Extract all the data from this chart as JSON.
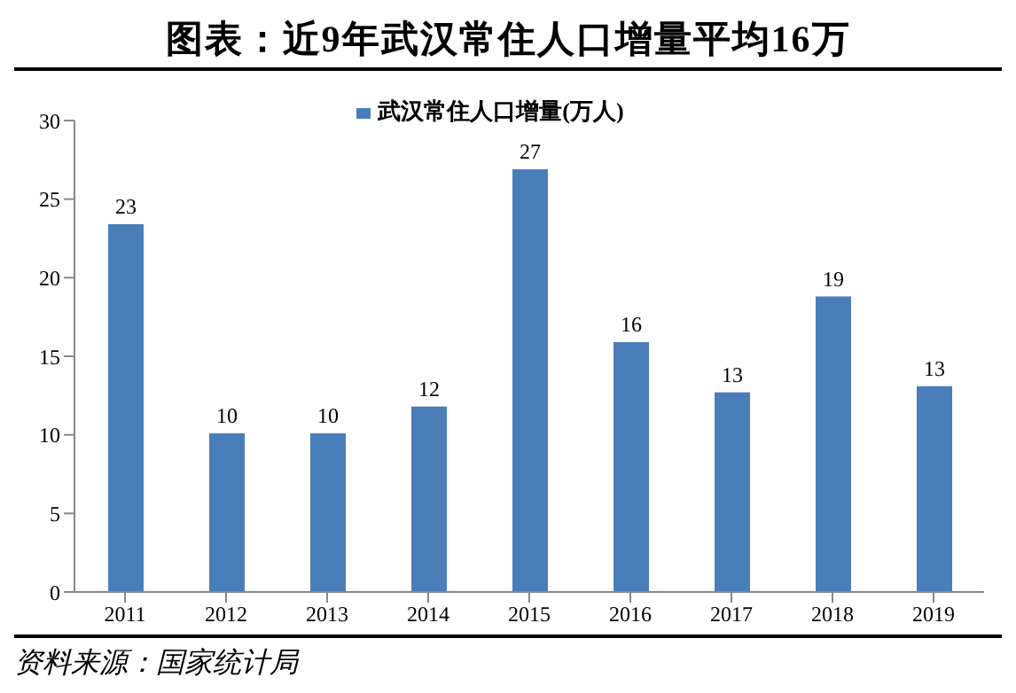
{
  "chart_data": {
    "type": "bar",
    "title": "图表：近9年武汉常住人口增量平均16万",
    "categories": [
      "2011",
      "2012",
      "2013",
      "2014",
      "2015",
      "2016",
      "2017",
      "2018",
      "2019"
    ],
    "series": [
      {
        "name": "武汉常住人口增量(万人)",
        "color": "#4a7ebb",
        "values": [
          23.4,
          10.1,
          10.1,
          11.8,
          26.9,
          15.9,
          12.7,
          18.8,
          13.1
        ],
        "value_labels": [
          "23",
          "10",
          "10",
          "12",
          "27",
          "16",
          "13",
          "19",
          "13"
        ]
      }
    ],
    "ylim": [
      0,
      30
    ],
    "yticks": [
      0,
      5,
      10,
      15,
      20,
      25,
      30
    ],
    "legend": "top",
    "grid": false,
    "annotations": [
      "资料来源：国家统计局"
    ]
  }
}
